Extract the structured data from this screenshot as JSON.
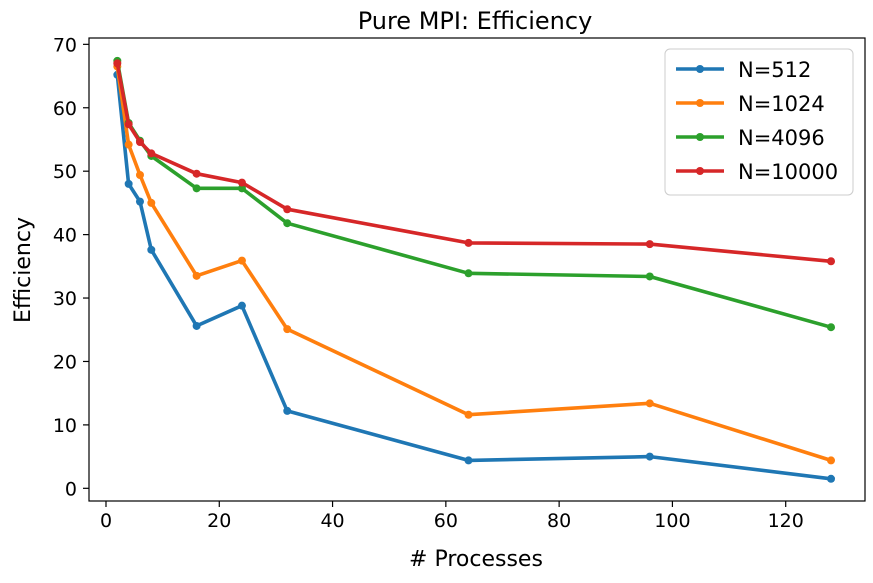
{
  "chart_data": {
    "type": "line",
    "title": "Pure MPI: Efficiency",
    "xlabel": "# Processes",
    "ylabel": "Efficiency",
    "xlim": [
      -3,
      134
    ],
    "ylim": [
      -2,
      71
    ],
    "xticks": [
      0,
      20,
      40,
      60,
      80,
      100,
      120
    ],
    "yticks": [
      0,
      10,
      20,
      30,
      40,
      50,
      60,
      70
    ],
    "grid": false,
    "legend_position": "top-right",
    "x": [
      2,
      4,
      6,
      8,
      16,
      24,
      32,
      64,
      96,
      128
    ],
    "series": [
      {
        "name": "N=512",
        "color": "#1f77b4",
        "values": [
          65.2,
          48.0,
          45.2,
          37.6,
          25.6,
          28.8,
          12.2,
          4.4,
          5.0,
          1.5
        ]
      },
      {
        "name": "N=1024",
        "color": "#ff7f0e",
        "values": [
          66.5,
          54.2,
          49.4,
          45.0,
          33.5,
          35.9,
          25.1,
          11.6,
          13.4,
          4.4
        ]
      },
      {
        "name": "N=4096",
        "color": "#2ca02c",
        "values": [
          67.4,
          57.6,
          54.8,
          52.4,
          47.3,
          47.3,
          41.8,
          33.9,
          33.4,
          25.4
        ]
      },
      {
        "name": "N=10000",
        "color": "#d62728",
        "values": [
          67.0,
          57.4,
          54.6,
          52.8,
          49.6,
          48.2,
          44.0,
          38.7,
          38.5,
          35.8
        ]
      }
    ]
  }
}
